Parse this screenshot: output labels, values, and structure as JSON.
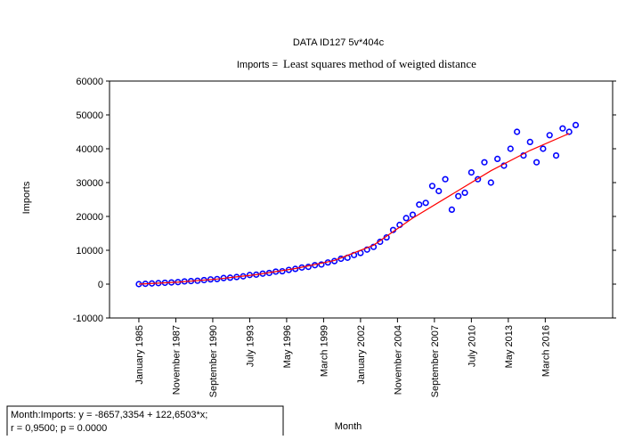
{
  "chart_data": {
    "type": "scatter",
    "title": "DATA ID127 5v*404c",
    "subtitle_prefix": "Imports  =",
    "subtitle": "Least squares method of weigted distance",
    "xlabel": "Month",
    "ylabel": "Imports",
    "legend_lines": [
      "Month:Imports:    y = -8657,3354 + 122,6503*x;",
      "r = 0,9500; p = 0.0000"
    ],
    "xlim": [
      "1982-10",
      "2021-05"
    ],
    "ylim": [
      -10000,
      60000
    ],
    "yticks": [
      -10000,
      0,
      10000,
      20000,
      30000,
      40000,
      50000,
      60000
    ],
    "xticks": [
      {
        "value": "1985-01",
        "label": "January 1985"
      },
      {
        "value": "1987-11",
        "label": "November 1987"
      },
      {
        "value": "1990-09",
        "label": "September 1990"
      },
      {
        "value": "1993-07",
        "label": "July 1993"
      },
      {
        "value": "1996-05",
        "label": "May 1996"
      },
      {
        "value": "1999-03",
        "label": "March 1999"
      },
      {
        "value": "2002-01",
        "label": "January 2002"
      },
      {
        "value": "2004-11",
        "label": "November 2004"
      },
      {
        "value": "2007-09",
        "label": "September 2007"
      },
      {
        "value": "2010-07",
        "label": "July 2010"
      },
      {
        "value": "2013-05",
        "label": "May 2013"
      },
      {
        "value": "2016-03",
        "label": "March 2016"
      }
    ],
    "series": [
      {
        "color": "#0000ff",
        "x": [
          "1985-01",
          "1985-07",
          "1986-01",
          "1986-07",
          "1987-01",
          "1987-07",
          "1988-01",
          "1988-07",
          "1989-01",
          "1989-07",
          "1990-01",
          "1990-07",
          "1991-01",
          "1991-07",
          "1992-01",
          "1992-07",
          "1993-01",
          "1993-07",
          "1994-01",
          "1994-07",
          "1995-01",
          "1995-07",
          "1996-01",
          "1996-07",
          "1997-01",
          "1997-07",
          "1998-01",
          "1998-07",
          "1999-01",
          "1999-07",
          "2000-01",
          "2000-07",
          "2001-01",
          "2001-07",
          "2002-01",
          "2002-07",
          "2003-01",
          "2003-07",
          "2004-01",
          "2004-07",
          "2005-01",
          "2005-07",
          "2006-01",
          "2006-07",
          "2007-01",
          "2007-07",
          "2008-01",
          "2008-07",
          "2009-01",
          "2009-07",
          "2010-01",
          "2010-07",
          "2011-01",
          "2011-07",
          "2012-01",
          "2012-07",
          "2013-01",
          "2013-07",
          "2014-01",
          "2014-07",
          "2015-01",
          "2015-07",
          "2016-01",
          "2016-07",
          "2017-01",
          "2017-07",
          "2018-01",
          "2018-07"
        ],
        "values": [
          0,
          100,
          200,
          300,
          400,
          500,
          600,
          800,
          900,
          1000,
          1200,
          1400,
          1500,
          1800,
          1900,
          2100,
          2300,
          2700,
          2800,
          3100,
          3300,
          3700,
          3800,
          4200,
          4500,
          4900,
          5100,
          5600,
          5800,
          6400,
          6800,
          7500,
          7800,
          8600,
          9200,
          10200,
          11000,
          12500,
          13800,
          16000,
          17500,
          19500,
          20500,
          23500,
          24000,
          29000,
          27500,
          31000,
          22000,
          26000,
          27000,
          33000,
          31000,
          36000,
          30000,
          37000,
          35000,
          40000,
          45000,
          38000,
          42000,
          36000,
          40000,
          44000,
          38000,
          46000,
          45000,
          47000
        ]
      },
      {
        "type": "line",
        "color": "#ff0000",
        "x": [
          "1985-01",
          "1988-01",
          "1991-01",
          "1994-01",
          "1997-01",
          "2000-01",
          "2003-01",
          "2006-01",
          "2009-01",
          "2012-01",
          "2015-01",
          "2018-01"
        ],
        "values": [
          0,
          600,
          1500,
          2800,
          4600,
          7000,
          11500,
          19500,
          26500,
          33500,
          39500,
          44500
        ]
      }
    ]
  }
}
